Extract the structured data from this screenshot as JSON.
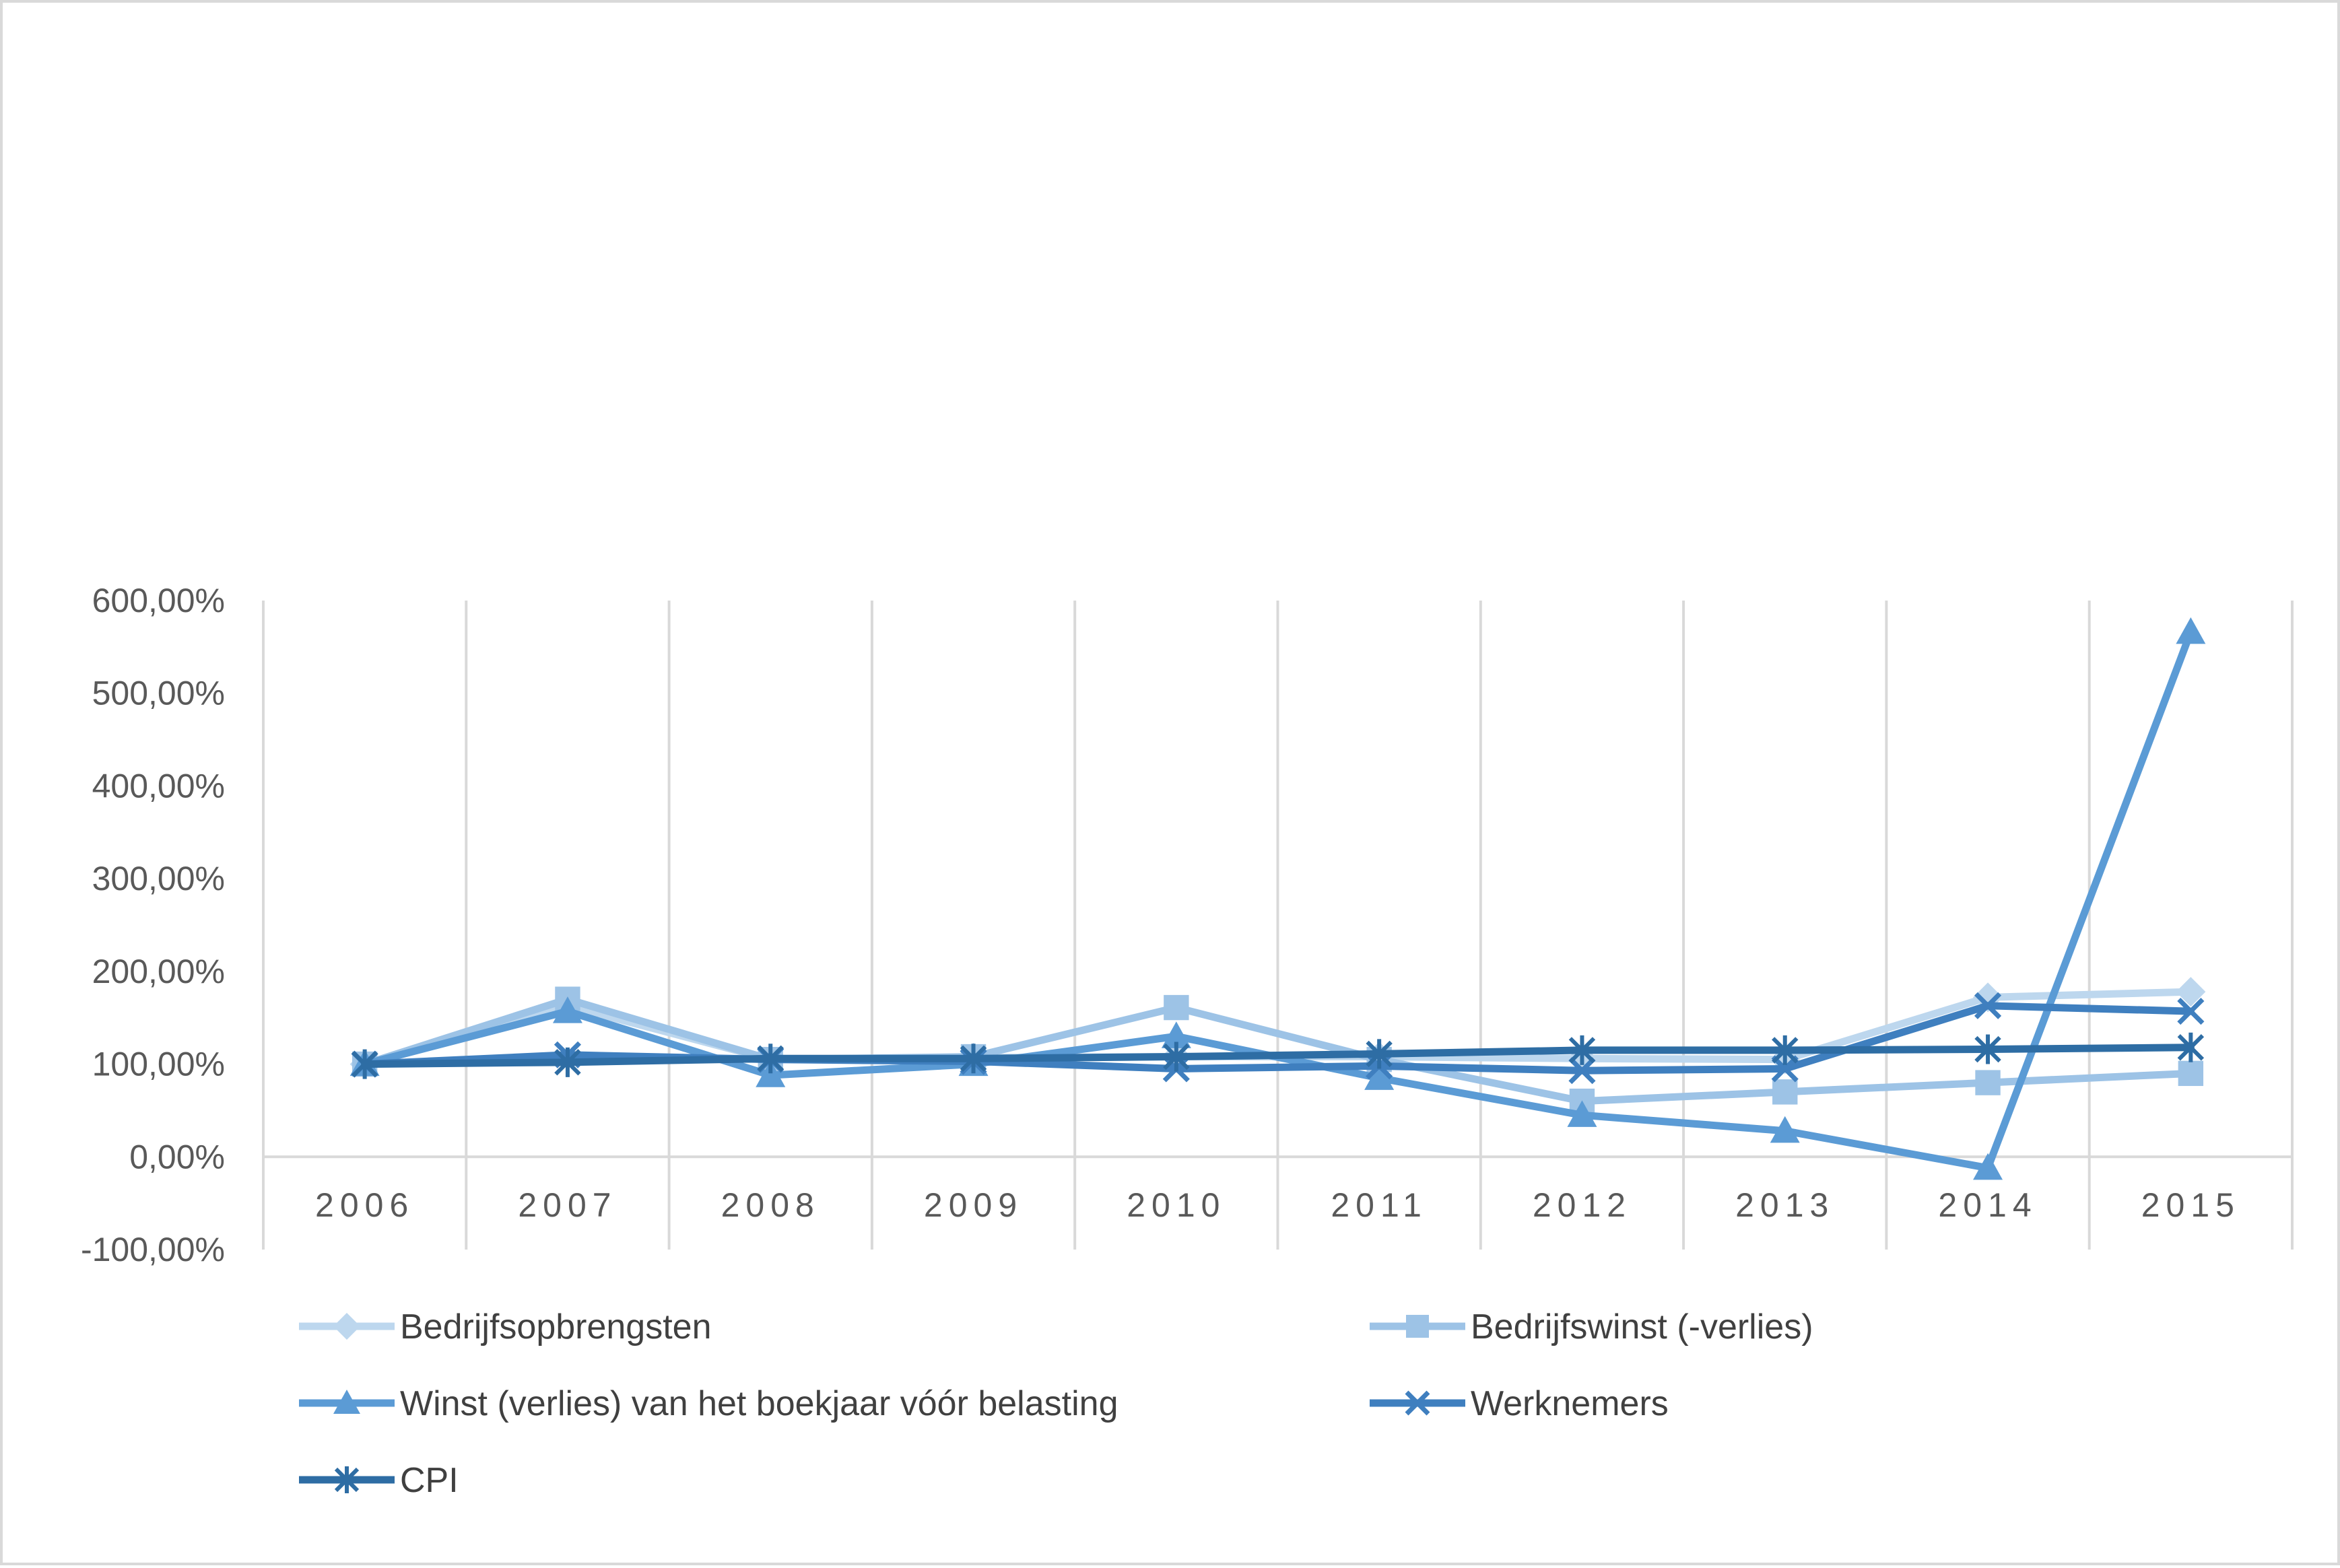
{
  "chart_data": {
    "type": "line",
    "title": "",
    "xlabel": "",
    "ylabel": "",
    "categories": [
      "2006",
      "2007",
      "2008",
      "2009",
      "2010",
      "2011",
      "2012",
      "2013",
      "2014",
      "2015"
    ],
    "ylim": [
      -100,
      600
    ],
    "yticks": [
      -100,
      0,
      100,
      200,
      300,
      400,
      500,
      600
    ],
    "ytick_labels": [
      "-100,00%",
      "0,00%",
      "100,00%",
      "200,00%",
      "300,00%",
      "400,00%",
      "500,00%",
      "600,00%"
    ],
    "grid": {
      "vertical": true,
      "horizontal": false
    },
    "legend_position": "bottom",
    "series": [
      {
        "name": "Bedrijfsopbrengsten",
        "marker": "diamond",
        "color": "#bdd7ee",
        "values": [
          100,
          163,
          105,
          107,
          108,
          108,
          106,
          105,
          172,
          178
        ]
      },
      {
        "name": "Bedrijfswinst (-verlies)",
        "marker": "square",
        "color": "#9dc3e6",
        "values": [
          100,
          170,
          105,
          108,
          161,
          105,
          60,
          70,
          80,
          90
        ]
      },
      {
        "name": "Winst (verlies) van het boekjaar vóór belasting",
        "marker": "triangle",
        "color": "#5b9bd5",
        "values": [
          100,
          157,
          88,
          100,
          130,
          85,
          45,
          28,
          -12,
          566
        ]
      },
      {
        "name": "Werknemers",
        "marker": "x",
        "color": "#3f7fbf",
        "values": [
          100,
          110,
          105,
          103,
          95,
          98,
          93,
          95,
          163,
          157
        ]
      },
      {
        "name": "CPI",
        "marker": "star",
        "color": "#2e6da4",
        "values": [
          100,
          102,
          106,
          106,
          108,
          111,
          115,
          115,
          116,
          118
        ]
      }
    ]
  }
}
